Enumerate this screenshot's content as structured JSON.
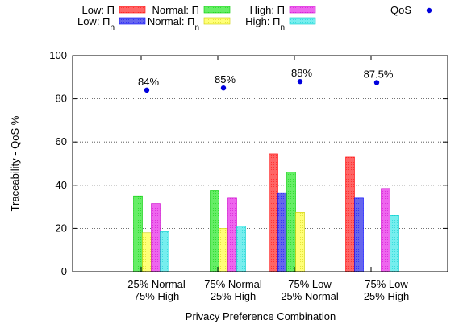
{
  "chart_data": {
    "type": "bar",
    "title": "",
    "xlabel": "Privacy Preference Combination",
    "ylabel": "Traceability - QoS %",
    "ylim": [
      0,
      100
    ],
    "yticks": [
      0,
      20,
      40,
      60,
      80,
      100
    ],
    "grid": true,
    "legend_position": "top",
    "categories": [
      [
        "25% Normal",
        "75% High"
      ],
      [
        "75% Normal",
        "25% High"
      ],
      [
        "75% Low",
        "25% Normal"
      ],
      [
        "75% Low",
        "25% High"
      ]
    ],
    "series": [
      {
        "key": "low_pi",
        "legend": "Low: Π",
        "base": "Low: Π",
        "sub": "",
        "color": "#ff6666",
        "stroke": "#ff0000",
        "values": [
          null,
          null,
          54.5,
          53
        ]
      },
      {
        "key": "low_pin",
        "legend": "Low: Πn",
        "base": "Low: Π",
        "sub": "n",
        "color": "#6666ee",
        "stroke": "#0000ff",
        "values": [
          null,
          null,
          36.5,
          34
        ]
      },
      {
        "key": "normal_pi",
        "legend": "Normal: Π",
        "base": "Normal: Π",
        "sub": "",
        "color": "#66ee66",
        "stroke": "#00cc00",
        "values": [
          35,
          37.5,
          46,
          null
        ]
      },
      {
        "key": "normal_pin",
        "legend": "Normal: Πn",
        "base": "Normal: Π",
        "sub": "n",
        "color": "#ffff77",
        "stroke": "#cccc00",
        "values": [
          18,
          20,
          27.5,
          null
        ]
      },
      {
        "key": "high_pi",
        "legend": "High: Π",
        "base": "High: Π",
        "sub": "",
        "color": "#ee66ee",
        "stroke": "#cc00cc",
        "values": [
          31.5,
          34,
          null,
          38.5
        ]
      },
      {
        "key": "high_pin",
        "legend": "High: Πn",
        "base": "High: Π",
        "sub": "n",
        "color": "#77eeee",
        "stroke": "#00cccc",
        "values": [
          18.5,
          21,
          null,
          26
        ]
      }
    ],
    "qos": {
      "legend": "QoS",
      "color": "#0000dd",
      "values": [
        84,
        85,
        88,
        87.5
      ],
      "labels": [
        "84%",
        "85%",
        "88%",
        "87.5%"
      ]
    }
  }
}
